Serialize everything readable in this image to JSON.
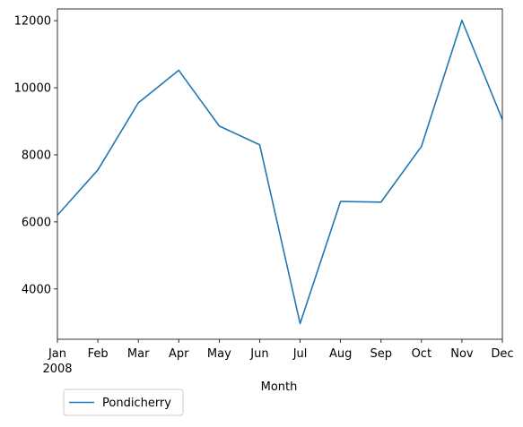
{
  "chart_data": {
    "type": "line",
    "categories": [
      "Jan",
      "Feb",
      "Mar",
      "Apr",
      "May",
      "Jun",
      "Jul",
      "Aug",
      "Sep",
      "Oct",
      "Nov",
      "Dec"
    ],
    "x_year_label": "2008",
    "series": [
      {
        "name": "Pondicherry",
        "color": "#1f77b4",
        "values": [
          6200,
          7550,
          9550,
          10520,
          8860,
          8300,
          2970,
          6610,
          6590,
          8250,
          12010,
          9050
        ]
      }
    ],
    "xlabel": "Month",
    "ylabel": "",
    "ylim": [
      2500,
      12350
    ],
    "yticks": [
      4000,
      6000,
      8000,
      10000,
      12000
    ],
    "grid": false,
    "legend_position": "bottom-left, below axes"
  }
}
